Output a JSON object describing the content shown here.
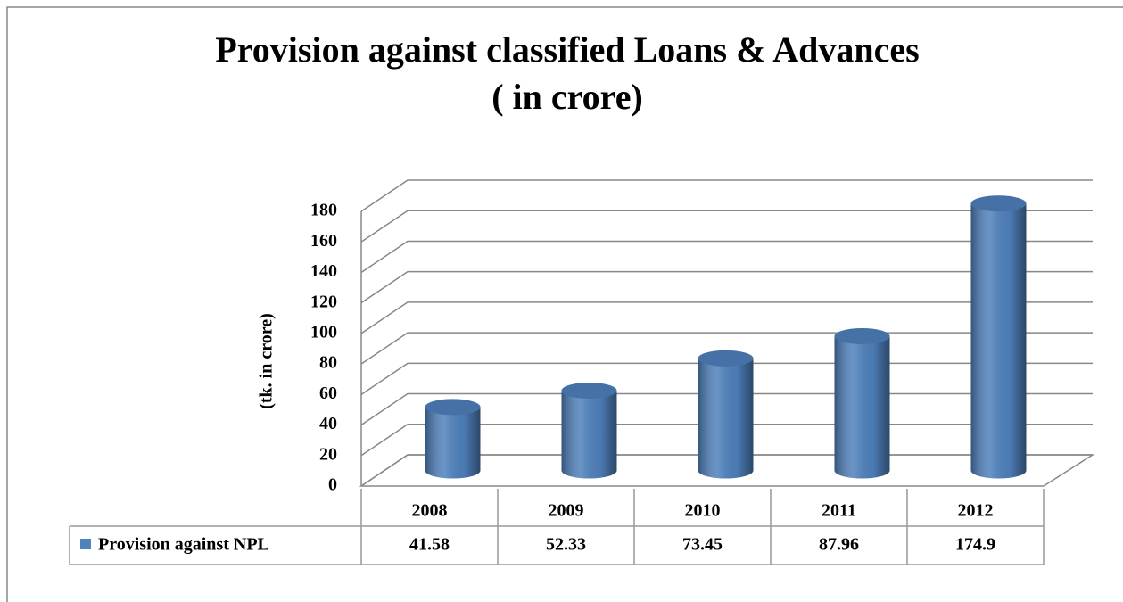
{
  "chart_data": {
    "type": "bar3d",
    "title": "Provision against classified Loans & Advances",
    "subtitle": "( in crore)",
    "y_label": "(tk. in crore)",
    "categories": [
      "2008",
      "2009",
      "2010",
      "2011",
      "2012"
    ],
    "series": [
      {
        "name": "Provision against NPL",
        "color": "#4f81bd",
        "values": [
          41.58,
          52.33,
          73.45,
          87.96,
          174.9
        ]
      }
    ],
    "ylim": [
      0,
      180
    ],
    "yticks": [
      0,
      20,
      40,
      60,
      80,
      100,
      120,
      140,
      160,
      180
    ],
    "grid": true
  }
}
